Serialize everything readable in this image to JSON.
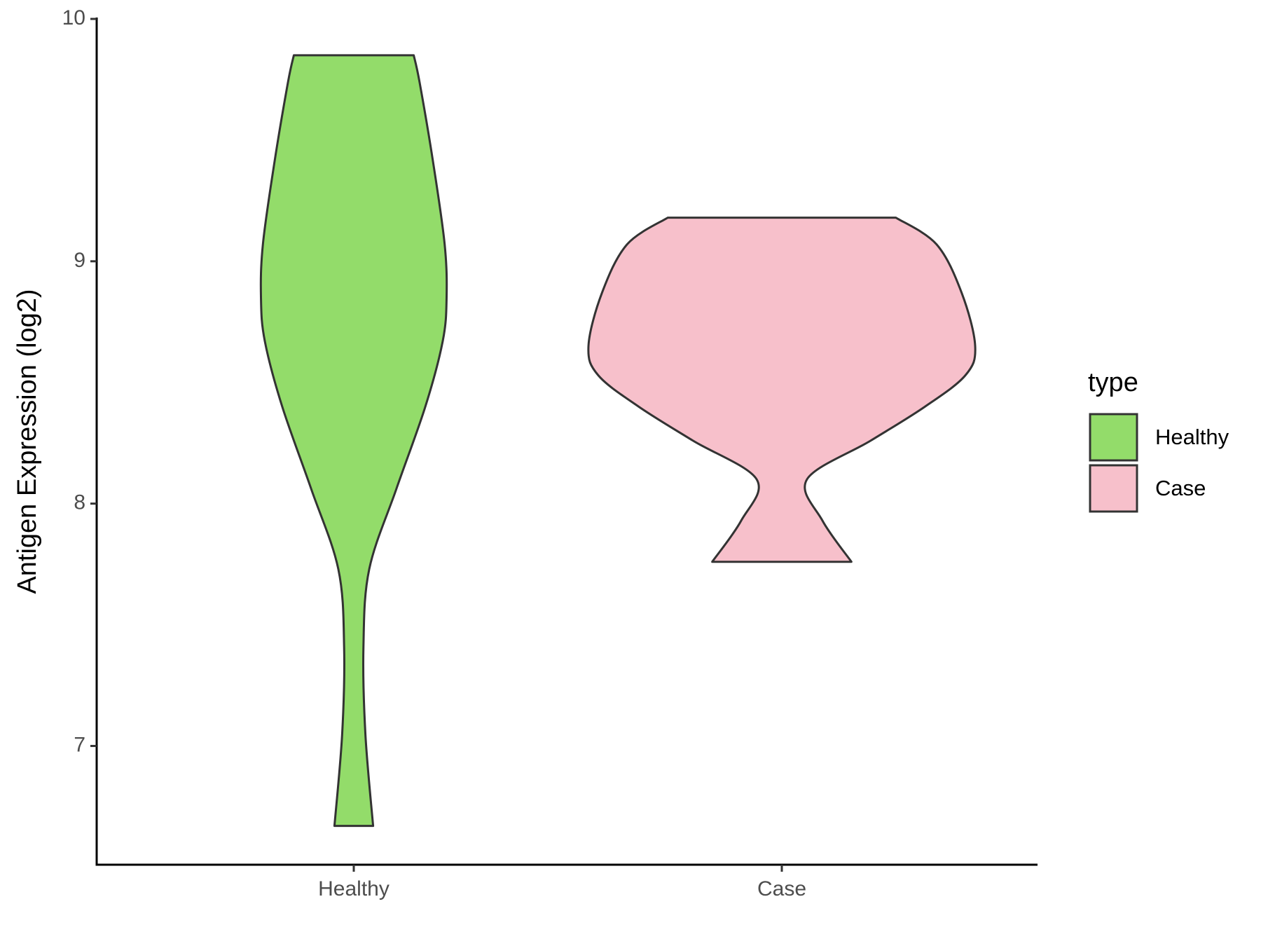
{
  "chart_data": {
    "type": "violin",
    "y_label": "Antigen Expression (log2)",
    "categories": [
      "Healthy",
      "Case"
    ],
    "legend_title": "type",
    "ylim": [
      6.51,
      10
    ],
    "yticks": [
      7,
      8,
      9,
      10
    ],
    "series": [
      {
        "name": "Healthy",
        "color": "#93dc6a",
        "y": [
          9.85,
          9.74,
          9.41,
          9.07,
          8.85,
          8.67,
          8.4,
          8.06,
          7.73,
          7.41,
          7.05,
          6.67
        ],
        "width": [
          0.31,
          0.34,
          0.41,
          0.47,
          0.48,
          0.46,
          0.37,
          0.22,
          0.08,
          0.05,
          0.06,
          0.1
        ]
      },
      {
        "name": "Case",
        "color": "#f7c0cb",
        "y": [
          9.18,
          9.07,
          8.87,
          8.65,
          8.53,
          8.4,
          8.26,
          8.1,
          7.93,
          7.76
        ],
        "width": [
          0.59,
          0.8,
          0.93,
          1.0,
          0.95,
          0.74,
          0.46,
          0.13,
          0.21,
          0.36
        ]
      }
    ]
  }
}
